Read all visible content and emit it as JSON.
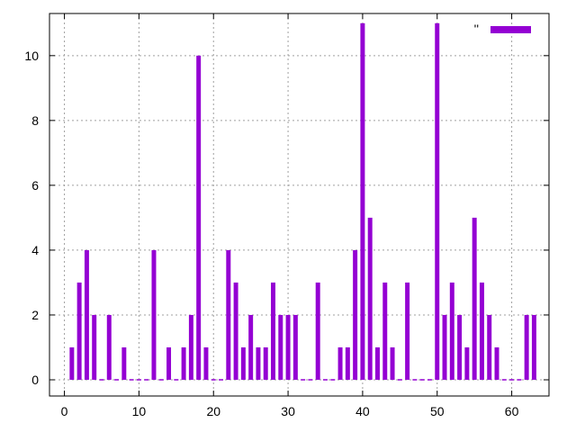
{
  "chart_data": {
    "type": "bar",
    "title": "",
    "xlabel": "",
    "ylabel": "",
    "xlim": [
      -2,
      65
    ],
    "ylim": [
      -0.5,
      11.3
    ],
    "xticks": [
      0,
      10,
      20,
      30,
      40,
      50,
      60
    ],
    "yticks": [
      0,
      2,
      4,
      6,
      8,
      10
    ],
    "grid": true,
    "legend": {
      "placement": "top-right",
      "label": "''"
    },
    "colors": {
      "bar": "#9400d3",
      "grid": "#a0a0a0",
      "axis": "#000000"
    },
    "series": [
      {
        "x": [
          1,
          2,
          3,
          4,
          5,
          6,
          7,
          8,
          9,
          10,
          11,
          12,
          13,
          14,
          15,
          16,
          17,
          18,
          19,
          20,
          21,
          22,
          23,
          24,
          25,
          26,
          27,
          28,
          29,
          30,
          31,
          32,
          33,
          34,
          35,
          36,
          37,
          38,
          39,
          40,
          41,
          42,
          43,
          44,
          45,
          46,
          47,
          48,
          49,
          50,
          51,
          52,
          53,
          54,
          55,
          56,
          57,
          58,
          59,
          60,
          61,
          62,
          63
        ],
        "values": [
          1,
          3,
          4,
          2,
          0,
          2,
          0,
          1,
          0,
          0,
          0,
          4,
          0,
          1,
          0,
          1,
          2,
          10,
          1,
          0,
          0,
          4,
          3,
          1,
          2,
          1,
          1,
          3,
          2,
          2,
          2,
          0,
          0,
          3,
          0,
          0,
          1,
          1,
          4,
          11,
          5,
          1,
          3,
          1,
          0,
          3,
          0,
          0,
          0,
          11,
          2,
          3,
          2,
          1,
          5,
          3,
          2,
          1,
          0,
          0,
          0,
          2,
          2
        ]
      }
    ]
  }
}
